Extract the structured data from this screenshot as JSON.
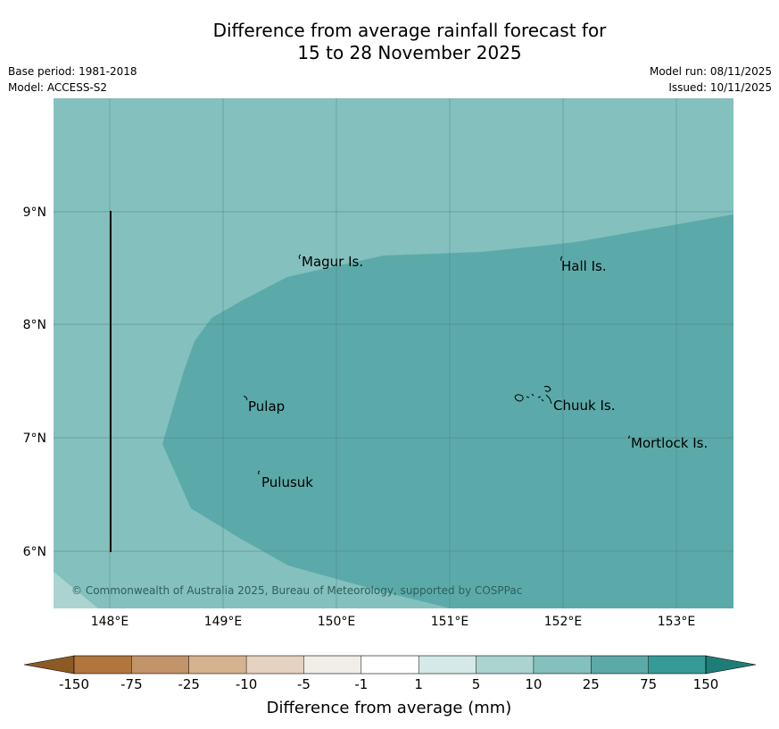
{
  "header": {
    "title_line1": "Difference from average rainfall forecast for",
    "title_line2": "15 to 28 November 2025",
    "base_period": "Base period: 1981-2018",
    "model": "Model: ACCESS-S2",
    "model_run": "Model run: 08/11/2025",
    "issued": "Issued: 10/11/2025"
  },
  "map": {
    "lon_labels": [
      "148°E",
      "149°E",
      "150°E",
      "151°E",
      "152°E",
      "153°E"
    ],
    "lat_labels": [
      "9°N",
      "8°N",
      "7°N",
      "6°N"
    ],
    "places": [
      "Magur Is.",
      "Hall Is.",
      "Pulap",
      "Chuuk Is.",
      "Mortlock Is.",
      "Pulusuk"
    ],
    "copyright": "© Commonwealth of Australia 2025, Bureau of Meteorology, supported by COSPPac",
    "colors": {
      "band_5_10": "#abd4d1",
      "band_10_25": "#84c0be",
      "band_25_75": "#5baaa9"
    }
  },
  "colorbar": {
    "ticks": [
      "-150",
      "-75",
      "-25",
      "-10",
      "-5",
      "-1",
      "1",
      "5",
      "10",
      "25",
      "75",
      "150"
    ],
    "colors": [
      "#8c5a24",
      "#b0763e",
      "#c29469",
      "#d5b290",
      "#e6d2c0",
      "#f1eee8",
      "#ffffff",
      "#d5e9e8",
      "#abd4d1",
      "#84c0be",
      "#5baaa9",
      "#369a96",
      "#1f7d78"
    ],
    "label": "Difference from average (mm)"
  }
}
